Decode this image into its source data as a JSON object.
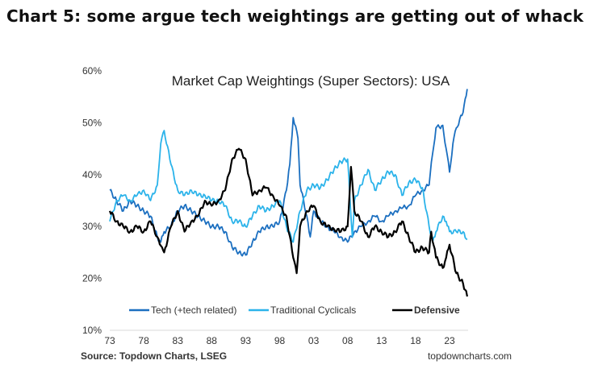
{
  "heading": "Chart 5: some argue tech weightings are getting out of whack",
  "chart_data": {
    "type": "line",
    "title": "Market Cap Weightings (Super Sectors): USA",
    "xlabel": "",
    "ylabel": "",
    "xlim": [
      1973,
      2026
    ],
    "ylim": [
      10,
      60
    ],
    "x_ticks": [
      1973,
      1978,
      1983,
      1988,
      1993,
      1998,
      2003,
      2008,
      2013,
      2018,
      2023
    ],
    "x_tick_labels": [
      "73",
      "78",
      "83",
      "88",
      "93",
      "98",
      "03",
      "08",
      "13",
      "18",
      "23"
    ],
    "y_ticks": [
      10,
      20,
      30,
      40,
      50,
      60
    ],
    "y_tick_labels": [
      "10%",
      "20%",
      "30%",
      "40%",
      "50%",
      "60%"
    ],
    "legend_position": "bottom",
    "grid": false,
    "source": "Source: Topdown Charts, LSEG",
    "watermark": "topdowncharts.com",
    "series": [
      {
        "name": "Tech (+tech related)",
        "color": "#1b6fc0",
        "bold": false,
        "points": [
          [
            1973,
            37
          ],
          [
            1974,
            35
          ],
          [
            1975,
            33
          ],
          [
            1976,
            35
          ],
          [
            1977,
            34
          ],
          [
            1978,
            33
          ],
          [
            1979,
            32
          ],
          [
            1980,
            28
          ],
          [
            1980.5,
            27
          ],
          [
            1981,
            29
          ],
          [
            1982,
            30
          ],
          [
            1983,
            33
          ],
          [
            1984,
            34
          ],
          [
            1985,
            33
          ],
          [
            1986,
            32
          ],
          [
            1987,
            31
          ],
          [
            1988,
            30
          ],
          [
            1989,
            30
          ],
          [
            1990,
            29
          ],
          [
            1991,
            26
          ],
          [
            1992,
            25
          ],
          [
            1993,
            24.5
          ],
          [
            1994,
            27
          ],
          [
            1995,
            29
          ],
          [
            1996,
            30
          ],
          [
            1997,
            30
          ],
          [
            1998,
            31
          ],
          [
            1999,
            37
          ],
          [
            1999.5,
            42
          ],
          [
            2000,
            51
          ],
          [
            2000.7,
            47
          ],
          [
            2001,
            38
          ],
          [
            2002,
            32
          ],
          [
            2002.5,
            28
          ],
          [
            2003,
            33
          ],
          [
            2004,
            31
          ],
          [
            2005,
            30
          ],
          [
            2006,
            29
          ],
          [
            2007,
            28
          ],
          [
            2008,
            27
          ],
          [
            2009,
            29
          ],
          [
            2010,
            30
          ],
          [
            2011,
            31
          ],
          [
            2012,
            32
          ],
          [
            2013,
            31
          ],
          [
            2014,
            32
          ],
          [
            2015,
            33
          ],
          [
            2016,
            33.5
          ],
          [
            2017,
            34
          ],
          [
            2018,
            36
          ],
          [
            2019,
            37
          ],
          [
            2020,
            38
          ],
          [
            2020.5,
            44
          ],
          [
            2021,
            49
          ],
          [
            2022,
            49.5
          ],
          [
            2022.5,
            45
          ],
          [
            2023,
            40.5
          ],
          [
            2023.5,
            46
          ],
          [
            2024,
            49
          ],
          [
            2025,
            52
          ],
          [
            2025.6,
            56.5
          ]
        ]
      },
      {
        "name": "Traditional Cyclicals",
        "color": "#2bb3ea",
        "bold": false,
        "points": [
          [
            1973,
            31
          ],
          [
            1974,
            35
          ],
          [
            1975,
            36
          ],
          [
            1976,
            35
          ],
          [
            1977,
            36
          ],
          [
            1978,
            37
          ],
          [
            1979,
            35
          ],
          [
            1980,
            38
          ],
          [
            1980.5,
            46
          ],
          [
            1981,
            48.5
          ],
          [
            1982,
            42
          ],
          [
            1983,
            37
          ],
          [
            1984,
            36
          ],
          [
            1985,
            37
          ],
          [
            1986,
            36
          ],
          [
            1987,
            36
          ],
          [
            1988,
            35
          ],
          [
            1989,
            35
          ],
          [
            1990,
            34
          ],
          [
            1991,
            31
          ],
          [
            1992,
            31
          ],
          [
            1993,
            30
          ],
          [
            1994,
            32
          ],
          [
            1995,
            34
          ],
          [
            1996,
            33
          ],
          [
            1997,
            34
          ],
          [
            1998,
            35
          ],
          [
            1999,
            30
          ],
          [
            2000,
            27
          ],
          [
            2001,
            33
          ],
          [
            2002,
            37
          ],
          [
            2003,
            38
          ],
          [
            2004,
            37.5
          ],
          [
            2005,
            39
          ],
          [
            2006,
            41
          ],
          [
            2007,
            42.5
          ],
          [
            2008,
            43
          ],
          [
            2008.7,
            28
          ],
          [
            2009,
            35
          ],
          [
            2010,
            38
          ],
          [
            2011,
            41
          ],
          [
            2012,
            37
          ],
          [
            2013,
            39
          ],
          [
            2014,
            40.5
          ],
          [
            2015,
            40
          ],
          [
            2016,
            36
          ],
          [
            2017,
            38.5
          ],
          [
            2018,
            39
          ],
          [
            2019,
            37.5
          ],
          [
            2020,
            30
          ],
          [
            2020.5,
            27
          ],
          [
            2021,
            29
          ],
          [
            2022,
            32
          ],
          [
            2022.5,
            31
          ],
          [
            2023,
            29
          ],
          [
            2024,
            29
          ],
          [
            2025,
            29
          ],
          [
            2025.6,
            27.5
          ]
        ]
      },
      {
        "name": "Defensive",
        "color": "#000000",
        "bold": true,
        "points": [
          [
            1973,
            33
          ],
          [
            1974,
            31
          ],
          [
            1975,
            30
          ],
          [
            1976,
            29
          ],
          [
            1977,
            30
          ],
          [
            1978,
            29
          ],
          [
            1979,
            31
          ],
          [
            1980,
            28
          ],
          [
            1980.7,
            26
          ],
          [
            1981,
            25
          ],
          [
            1982,
            30
          ],
          [
            1983,
            33
          ],
          [
            1984,
            29
          ],
          [
            1985,
            31
          ],
          [
            1986,
            32
          ],
          [
            1987,
            35
          ],
          [
            1988,
            34
          ],
          [
            1989,
            35
          ],
          [
            1990,
            37
          ],
          [
            1991,
            43
          ],
          [
            1992,
            45
          ],
          [
            1993,
            43
          ],
          [
            1994,
            36
          ],
          [
            1995,
            37
          ],
          [
            1996,
            37.5
          ],
          [
            1997,
            36
          ],
          [
            1998,
            34
          ],
          [
            1999,
            32
          ],
          [
            2000,
            24
          ],
          [
            2000.5,
            21
          ],
          [
            2001,
            30
          ],
          [
            2002,
            33
          ],
          [
            2003,
            34
          ],
          [
            2004,
            31
          ],
          [
            2005,
            30
          ],
          [
            2006,
            29.5
          ],
          [
            2007,
            29
          ],
          [
            2008,
            30
          ],
          [
            2008.5,
            41.5
          ],
          [
            2009,
            33
          ],
          [
            2010,
            31
          ],
          [
            2011,
            28
          ],
          [
            2012,
            30
          ],
          [
            2013,
            29
          ],
          [
            2014,
            28
          ],
          [
            2015,
            29
          ],
          [
            2016,
            31
          ],
          [
            2017,
            28
          ],
          [
            2018,
            25
          ],
          [
            2019,
            26
          ],
          [
            2020,
            25
          ],
          [
            2020.3,
            29
          ],
          [
            2021,
            24
          ],
          [
            2022,
            22
          ],
          [
            2022.5,
            24
          ],
          [
            2023,
            26.5
          ],
          [
            2024,
            21
          ],
          [
            2025,
            19
          ],
          [
            2025.6,
            16.5
          ]
        ]
      }
    ]
  }
}
